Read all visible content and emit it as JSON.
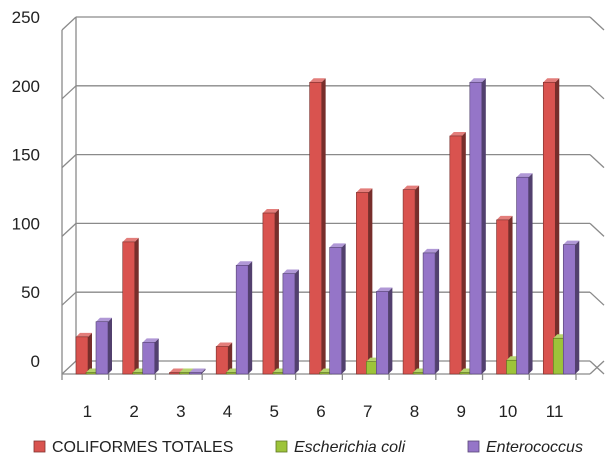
{
  "chart_data": {
    "type": "bar",
    "categories": [
      "1",
      "2",
      "3",
      "4",
      "5",
      "6",
      "7",
      "8",
      "9",
      "10",
      "11"
    ],
    "series": [
      {
        "name": "COLIFORMES TOTALES",
        "values": [
          27,
          96,
          0,
          20,
          117,
          212,
          132,
          134,
          173,
          112,
          212
        ],
        "color": "#d9534f",
        "italic": false
      },
      {
        "name": "Escherichia coli",
        "values": [
          0,
          0,
          0,
          0,
          0,
          0,
          9,
          0,
          0,
          10,
          26
        ],
        "color": "#9dc43a",
        "italic": true
      },
      {
        "name": "Enterococcus",
        "values": [
          38,
          23,
          0,
          79,
          73,
          92,
          60,
          88,
          212,
          143,
          94
        ],
        "color": "#9575c8",
        "italic": true
      }
    ],
    "yticks": [
      0,
      50,
      100,
      150,
      200,
      250
    ],
    "ylim": [
      0,
      250
    ],
    "grid": true,
    "legend": "bottom"
  }
}
